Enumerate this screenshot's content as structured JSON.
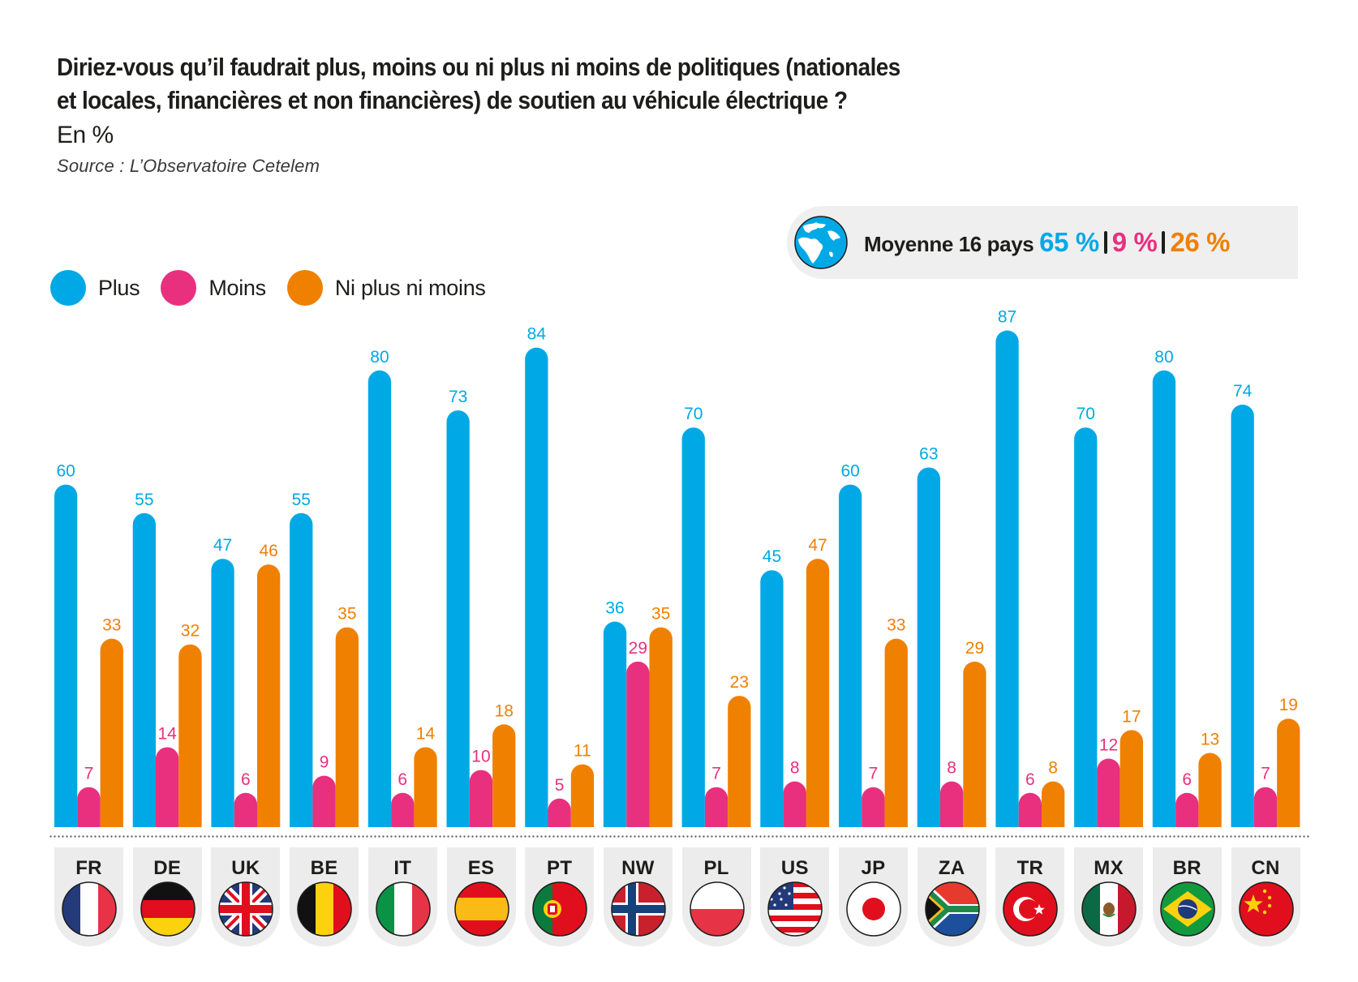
{
  "header": {
    "title_line1": "Diriez-vous qu’il faudrait plus, moins ou ni plus ni moins de politiques (nationales",
    "title_line2": "et locales, financières et non financières) de soutien au véhicule électrique ?",
    "unit": "En %",
    "source": "Source : L’Observatoire Cetelem"
  },
  "average": {
    "label": "Moyenne 16 pays",
    "icon": "globe-icon",
    "plus": "65 %",
    "moins": "9 %",
    "ni": "26 %"
  },
  "colors": {
    "plus": "#00a9e6",
    "moins": "#e8307f",
    "ni": "#f08000",
    "text": "#1d1d1b",
    "card": "#ececec"
  },
  "chart_data": {
    "type": "bar",
    "title": "Diriez-vous qu’il faudrait plus, moins ou ni plus ni moins de politiques (nationales et locales, financières et non financières) de soutien au véhicule électrique ?",
    "subtitle": "En %",
    "xlabel": "",
    "ylabel": "",
    "ylim": [
      0,
      100
    ],
    "grid": false,
    "legend_position": "top-left",
    "categories": [
      "FR",
      "DE",
      "UK",
      "BE",
      "IT",
      "ES",
      "PT",
      "NW",
      "PL",
      "US",
      "JP",
      "ZA",
      "TR",
      "MX",
      "BR",
      "CN"
    ],
    "series": [
      {
        "name": "Plus",
        "color": "#00a9e6",
        "values": [
          60,
          55,
          47,
          55,
          80,
          73,
          84,
          36,
          70,
          45,
          60,
          63,
          87,
          70,
          80,
          74
        ]
      },
      {
        "name": "Moins",
        "color": "#e8307f",
        "values": [
          7,
          14,
          6,
          9,
          6,
          10,
          5,
          29,
          7,
          8,
          7,
          8,
          6,
          12,
          6,
          7
        ]
      },
      {
        "name": "Ni plus ni moins",
        "color": "#f08000",
        "values": [
          33,
          32,
          46,
          35,
          14,
          18,
          11,
          35,
          23,
          47,
          33,
          29,
          8,
          17,
          13,
          19
        ]
      }
    ],
    "annotations": [
      "Moyenne 16 pays 65 % | 9 % | 26 %"
    ]
  },
  "countries": [
    {
      "code": "FR",
      "flag": "france-flag"
    },
    {
      "code": "DE",
      "flag": "germany-flag"
    },
    {
      "code": "UK",
      "flag": "uk-flag"
    },
    {
      "code": "BE",
      "flag": "belgium-flag"
    },
    {
      "code": "IT",
      "flag": "italy-flag"
    },
    {
      "code": "ES",
      "flag": "spain-flag"
    },
    {
      "code": "PT",
      "flag": "portugal-flag"
    },
    {
      "code": "NW",
      "flag": "norway-flag"
    },
    {
      "code": "PL",
      "flag": "poland-flag"
    },
    {
      "code": "US",
      "flag": "usa-flag"
    },
    {
      "code": "JP",
      "flag": "japan-flag"
    },
    {
      "code": "ZA",
      "flag": "south-africa-flag"
    },
    {
      "code": "TR",
      "flag": "turkey-flag"
    },
    {
      "code": "MX",
      "flag": "mexico-flag"
    },
    {
      "code": "BR",
      "flag": "brazil-flag"
    },
    {
      "code": "CN",
      "flag": "china-flag"
    }
  ]
}
